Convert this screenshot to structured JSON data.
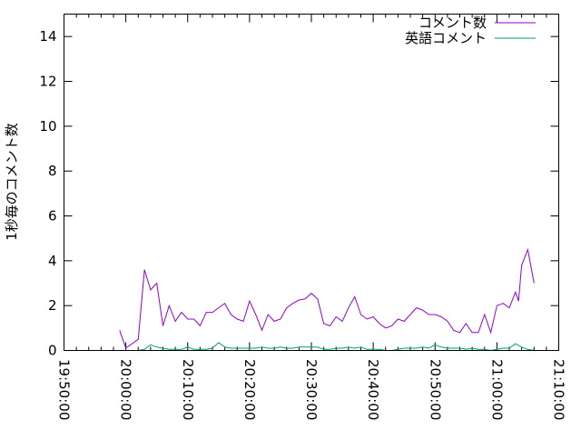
{
  "chart_data": {
    "type": "line",
    "title": "",
    "xlabel": "",
    "ylabel": "1秒毎のコメント数",
    "xlim": [
      "19:50:00",
      "21:10:00"
    ],
    "ylim": [
      0,
      15
    ],
    "x_ticks": [
      "19:50:00",
      "20:00:00",
      "20:10:00",
      "20:20:00",
      "20:30:00",
      "20:40:00",
      "20:50:00",
      "21:00:00",
      "21:10:00"
    ],
    "y_ticks": [
      "0",
      "2",
      "4",
      "6",
      "8",
      "10",
      "12",
      "14"
    ],
    "grid": false,
    "legend": "top-right",
    "series": [
      {
        "name": "コメント数",
        "color": "#9400d3",
        "x": [
          "19:59:00",
          "20:00:00",
          "20:01:00",
          "20:02:00",
          "20:03:00",
          "20:04:00",
          "20:05:00",
          "20:06:00",
          "20:07:00",
          "20:08:00",
          "20:09:00",
          "20:10:00",
          "20:11:00",
          "20:12:00",
          "20:13:00",
          "20:14:00",
          "20:15:00",
          "20:16:00",
          "20:17:00",
          "20:18:00",
          "20:19:00",
          "20:20:00",
          "20:21:00",
          "20:22:00",
          "20:23:00",
          "20:24:00",
          "20:25:00",
          "20:26:00",
          "20:27:00",
          "20:28:00",
          "20:29:00",
          "20:30:00",
          "20:31:00",
          "20:32:00",
          "20:33:00",
          "20:34:00",
          "20:35:00",
          "20:36:00",
          "20:37:00",
          "20:38:00",
          "20:39:00",
          "20:40:00",
          "20:41:00",
          "20:42:00",
          "20:43:00",
          "20:44:00",
          "20:45:00",
          "20:46:00",
          "20:47:00",
          "20:48:00",
          "20:49:00",
          "20:50:00",
          "20:51:00",
          "20:52:00",
          "20:53:00",
          "20:54:00",
          "20:55:00",
          "20:56:00",
          "20:57:00",
          "20:58:00",
          "20:59:00",
          "21:00:00",
          "21:01:00",
          "21:02:00",
          "21:03:00",
          "21:03:30",
          "21:04:00",
          "21:05:00",
          "21:06:00"
        ],
        "y": [
          0.9,
          0.1,
          0.3,
          0.5,
          3.6,
          2.7,
          3.0,
          1.1,
          2.0,
          1.3,
          1.7,
          1.4,
          1.4,
          1.1,
          1.7,
          1.7,
          1.9,
          2.1,
          1.6,
          1.4,
          1.3,
          2.2,
          1.6,
          0.9,
          1.6,
          1.3,
          1.4,
          1.9,
          2.1,
          2.25,
          2.3,
          2.55,
          2.3,
          1.2,
          1.1,
          1.5,
          1.3,
          1.9,
          2.4,
          1.6,
          1.4,
          1.5,
          1.2,
          1.0,
          1.1,
          1.4,
          1.3,
          1.6,
          1.9,
          1.8,
          1.6,
          1.6,
          1.5,
          1.3,
          0.9,
          0.8,
          1.2,
          0.8,
          0.8,
          1.6,
          0.8,
          2.0,
          2.1,
          1.9,
          2.6,
          2.2,
          3.8,
          4.5,
          3.0
        ]
      },
      {
        "name": "英語コメント",
        "color": "#009e73",
        "x": [
          "20:02:00",
          "20:03:00",
          "20:04:00",
          "20:05:00",
          "20:06:00",
          "20:07:00",
          "20:08:00",
          "20:09:00",
          "20:10:00",
          "20:11:00",
          "20:12:00",
          "20:13:00",
          "20:14:00",
          "20:15:00",
          "20:16:00",
          "20:17:00",
          "20:18:00",
          "20:19:00",
          "20:20:00",
          "20:21:00",
          "20:22:00",
          "20:23:00",
          "20:24:00",
          "20:25:00",
          "20:26:00",
          "20:27:00",
          "20:28:00",
          "20:29:00",
          "20:30:00",
          "20:31:00",
          "20:32:00",
          "20:33:00",
          "20:34:00",
          "20:35:00",
          "20:36:00",
          "20:37:00",
          "20:38:00",
          "20:39:00",
          "20:40:00",
          "20:41:00",
          "20:42:00",
          "20:43:00",
          "20:44:00",
          "20:45:00",
          "20:46:00",
          "20:47:00",
          "20:48:00",
          "20:49:00",
          "20:50:00",
          "20:51:00",
          "20:52:00",
          "20:53:00",
          "20:54:00",
          "20:55:00",
          "20:56:00",
          "20:57:00",
          "20:58:00",
          "20:59:00",
          "21:00:00",
          "21:01:00",
          "21:02:00",
          "21:03:00",
          "21:04:00",
          "21:05:00",
          "21:06:00"
        ],
        "y": [
          0.0,
          0.05,
          0.25,
          0.15,
          0.1,
          0.05,
          0.05,
          0.05,
          0.15,
          0.05,
          0.05,
          0.05,
          0.1,
          0.35,
          0.15,
          0.1,
          0.1,
          0.1,
          0.1,
          0.1,
          0.15,
          0.1,
          0.1,
          0.15,
          0.1,
          0.1,
          0.15,
          0.15,
          0.15,
          0.15,
          0.05,
          0.05,
          0.1,
          0.1,
          0.15,
          0.1,
          0.15,
          0.05,
          0.05,
          0.05,
          0.0,
          0.0,
          0.05,
          0.1,
          0.1,
          0.1,
          0.15,
          0.1,
          0.25,
          0.15,
          0.1,
          0.1,
          0.1,
          0.05,
          0.1,
          0.05,
          0.05,
          0.0,
          0.05,
          0.1,
          0.1,
          0.3,
          0.15,
          0.05,
          0.0
        ]
      }
    ]
  }
}
